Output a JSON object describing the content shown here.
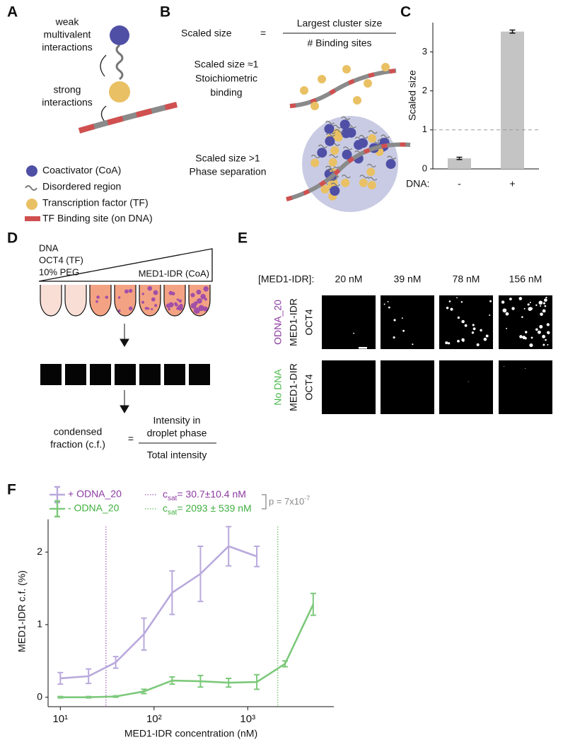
{
  "panel_labels": [
    "A",
    "B",
    "C",
    "D",
    "E",
    "F"
  ],
  "panel_a": {
    "weak_label": [
      "weak",
      "multivalent",
      "interactions"
    ],
    "strong_label": [
      "strong",
      "interactions"
    ],
    "legend": [
      "Coactivator (CoA)",
      "Disordered region",
      "Transcription factor (TF)",
      "TF Binding site (on DNA)"
    ]
  },
  "panel_b": {
    "lhs": "Scaled size",
    "equals": "=",
    "numerator": "Largest cluster size",
    "denominator": "# Binding sites",
    "case_1": [
      "Scaled size ≈1",
      "Stoichiometric",
      "binding"
    ],
    "case_2": [
      "Scaled size >1",
      "Phase separation"
    ]
  },
  "panel_d": {
    "components": [
      "DNA",
      "OCT4 (TF)",
      "10% PEG"
    ],
    "gradient_label": "MED1-IDR (CoA)",
    "lhs": [
      "condensed",
      "fraction (c.f.)"
    ],
    "equals": "=",
    "numerator": [
      "Intensity in",
      "droplet phase"
    ],
    "denominator": "Total intensity"
  },
  "panel_e": {
    "concentration_label": "[MED1-IDR]:",
    "columns": [
      "20 nM",
      "39 nM",
      "78 nM",
      "156 nM"
    ],
    "rows": [
      {
        "condition": "ODNA_20",
        "color": "#8b3aa0",
        "proteins": [
          "MED1-IDR",
          "OCT4"
        ]
      },
      {
        "condition": "No DNA",
        "color": "#4cb84c",
        "proteins": [
          "MED1-DIR",
          "OCT4"
        ]
      }
    ]
  },
  "chart_data": [
    {
      "type": "bar",
      "ylabel": "Scaled size",
      "xlabel": "DNA:",
      "categories": [
        "-",
        "+"
      ],
      "values": [
        0.27,
        3.52
      ],
      "errors": [
        0.03,
        0.04
      ],
      "color": "#c4c4c4",
      "ylim": [
        0,
        3.75
      ],
      "yticks": [
        0,
        1,
        2,
        3
      ],
      "reference_line": 1
    },
    {
      "type": "line",
      "xlabel": "MED1-IDR concentration (nM)",
      "ylabel": "MED1-IDR c.f. (%)",
      "xscale": "log",
      "xlim": [
        7.4,
        8300
      ],
      "xticks": [
        {
          "value": 10,
          "label": "10¹"
        },
        {
          "value": 100,
          "label": "10²"
        },
        {
          "value": 1000,
          "label": "10³"
        }
      ],
      "ylim": [
        -0.13,
        2.45
      ],
      "yticks": [
        0,
        1,
        2
      ],
      "series": [
        {
          "name": "+ ODNA_20",
          "color": "#b9a9dc",
          "label_color": "#8b3aa0",
          "x": [
            10,
            20,
            39,
            78,
            156,
            313,
            625,
            1250
          ],
          "values": [
            0.26,
            0.29,
            0.48,
            0.87,
            1.44,
            1.7,
            2.08,
            1.94
          ],
          "errors": [
            0.08,
            0.1,
            0.08,
            0.22,
            0.3,
            0.38,
            0.27,
            0.14
          ],
          "csat": 30.7,
          "csat_label": {
            "symbol": "c",
            "subscript": "sat",
            "text": "= 30.7±10.4 nM"
          }
        },
        {
          "name": "- ODNA_20",
          "color": "#7dc97b",
          "label_color": "#3fae3f",
          "x": [
            10,
            20,
            39,
            78,
            156,
            313,
            625,
            1250,
            2500,
            5000
          ],
          "values": [
            0.0,
            0.0,
            0.01,
            0.08,
            0.23,
            0.22,
            0.2,
            0.21,
            0.46,
            1.28
          ],
          "errors": [
            0.01,
            0.01,
            0.01,
            0.03,
            0.05,
            0.08,
            0.06,
            0.1,
            0.04,
            0.15
          ],
          "csat": 2093,
          "csat_label": {
            "symbol": "c",
            "subscript": "sat",
            "text": "= 2093 ± 539 nM"
          }
        }
      ],
      "p_value": {
        "text": "p = 7x10",
        "exponent": "-7"
      }
    }
  ]
}
